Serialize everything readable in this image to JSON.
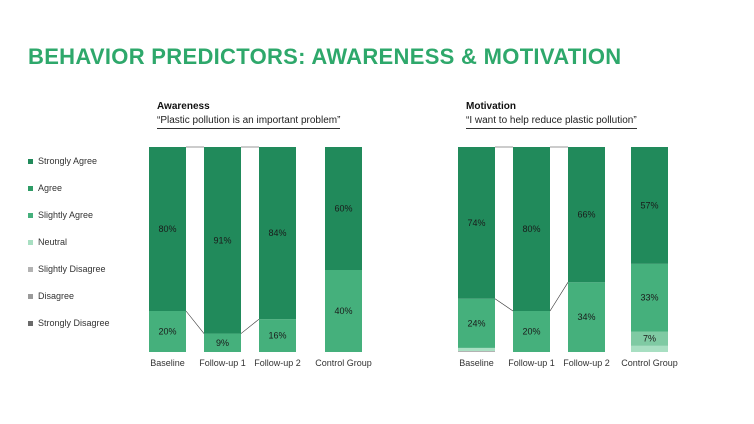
{
  "title": "BEHAVIOR PREDICTORS: AWARENESS & MOTIVATION",
  "legend": [
    {
      "label": "Strongly Agree",
      "color": "#218a5b"
    },
    {
      "label": "Agree",
      "color": "#2e9c66"
    },
    {
      "label": "Slightly Agree",
      "color": "#45b07c"
    },
    {
      "label": "Neutral",
      "color": "#a8dfc2"
    },
    {
      "label": "Slightly Disagree",
      "color": "#b3b3b3"
    },
    {
      "label": "Disagree",
      "color": "#9a9a9a"
    },
    {
      "label": "Strongly Disagree",
      "color": "#6a6a6a"
    }
  ],
  "chart_data": [
    {
      "type": "bar",
      "stacked": true,
      "title": "Awareness",
      "subtitle": "“Plastic pollution is an important problem”",
      "categories": [
        "Baseline",
        "Follow-up 1",
        "Follow-up 2",
        "Control Group"
      ],
      "series": [
        {
          "name": "Agree",
          "color": "#45b07c",
          "values": [
            20,
            9,
            16,
            40
          ]
        },
        {
          "name": "Strongly Agree",
          "color": "#218a5b",
          "values": [
            80,
            91,
            84,
            60
          ]
        }
      ],
      "labels": [
        [
          "20%",
          "80%"
        ],
        [
          "9%",
          "91%"
        ],
        [
          "16%",
          "84%"
        ],
        [
          "40%",
          "60%"
        ]
      ],
      "connectors": [
        true,
        true,
        false
      ],
      "ylim": [
        0,
        100
      ]
    },
    {
      "type": "bar",
      "stacked": true,
      "title": "Motivation",
      "subtitle": "“I want to help reduce plastic pollution”",
      "categories": [
        "Baseline",
        "Follow-up 1",
        "Follow-up 2",
        "Control Group"
      ],
      "series": [
        {
          "name": "Slightly Disagree",
          "color": "#b3b3b3",
          "values": [
            0.5,
            0,
            0,
            0
          ]
        },
        {
          "name": "Neutral",
          "color": "#a8dfc2",
          "values": [
            1.5,
            0,
            0,
            3
          ]
        },
        {
          "name": "Slightly Agree",
          "color": "#7fcaa3",
          "values": [
            0,
            0,
            0,
            7
          ]
        },
        {
          "name": "Agree",
          "color": "#45b07c",
          "values": [
            24,
            20,
            34,
            33
          ]
        },
        {
          "name": "Strongly Agree",
          "color": "#218a5b",
          "values": [
            74,
            80,
            66,
            57
          ]
        }
      ],
      "labels": [
        [
          "",
          "",
          "",
          "24%",
          "74%"
        ],
        [
          "",
          "",
          "",
          "20%",
          "80%"
        ],
        [
          "",
          "",
          "",
          "34%",
          "66%"
        ],
        [
          "",
          "",
          "7%",
          "33%",
          "57%"
        ]
      ],
      "connectors": [
        true,
        true,
        false
      ],
      "ylim": [
        0,
        100
      ]
    }
  ]
}
